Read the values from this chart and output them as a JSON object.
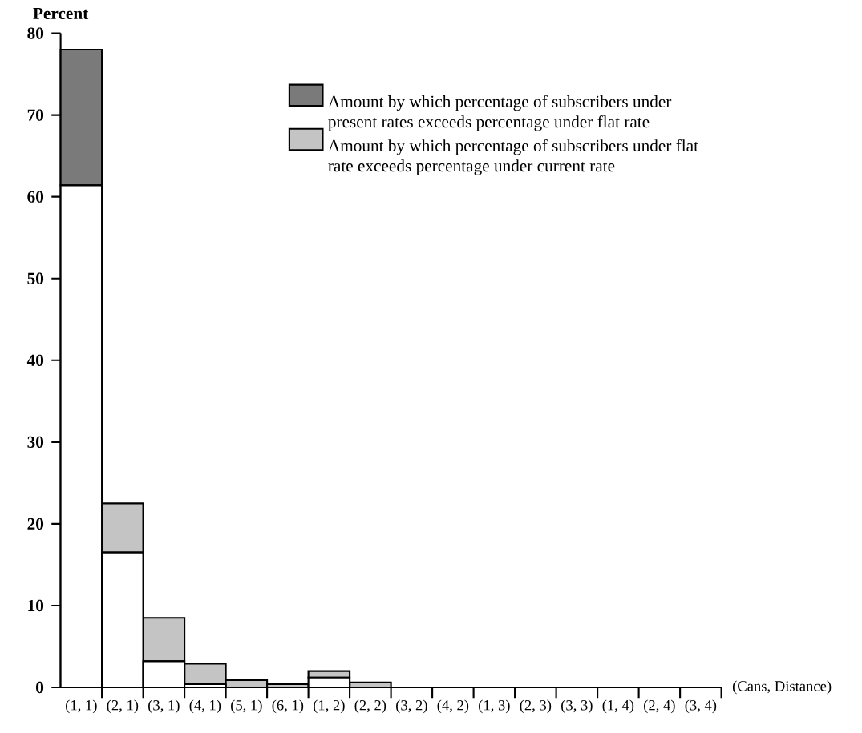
{
  "chart_data": {
    "type": "bar",
    "stacked": true,
    "ylabel": "Percent",
    "xlabel": "(Cans, Distance)",
    "categories": [
      "(1, 1)",
      "(2, 1)",
      "(3, 1)",
      "(4, 1)",
      "(5, 1)",
      "(6, 1)",
      "(1, 2)",
      "(2, 2)",
      "(3, 2)",
      "(4, 2)",
      "(1, 3)",
      "(2, 3)",
      "(3, 3)",
      "(1, 4)",
      "(2, 4)",
      "(3, 4)"
    ],
    "series": [
      {
        "color": "#ffffff",
        "values": [
          61.4,
          16.5,
          3.2,
          0.4,
          0,
          0,
          1.2,
          0,
          0,
          0,
          0,
          0,
          0,
          0,
          0,
          0
        ]
      },
      {
        "name": "Amount by which percentage of subscribers under present rates exceeds percentage under flat rate",
        "color": "#7a7a7a",
        "values": [
          16.6,
          0,
          0,
          0,
          0,
          0,
          0,
          0,
          0,
          0,
          0,
          0,
          0,
          0,
          0,
          0
        ]
      },
      {
        "name": "Amount by which percentage of subscribers under flat rate exceeds percentage under current rate",
        "color": "#c4c4c4",
        "values": [
          0,
          6.0,
          5.3,
          2.5,
          0.9,
          0.4,
          0.8,
          0.6,
          0,
          0,
          0,
          0,
          0,
          0,
          0,
          0
        ]
      }
    ],
    "ylim": [
      0,
      80
    ],
    "yticks": [
      0,
      10,
      20,
      30,
      40,
      50,
      60,
      70,
      80
    ],
    "legend": "top right"
  }
}
